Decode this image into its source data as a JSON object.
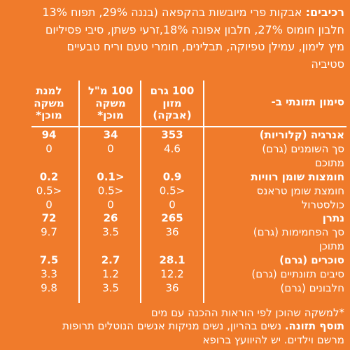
{
  "ingredients": {
    "label": "רכיבים:",
    "lines": [
      "אבקות פרי מיובשות בהקפאה (בננה 29%, תפוח 13%",
      "חלבון חומוס 27%, חלבון אפונה 18%,זרעי פשתן, סיבי פסיליום",
      "מיץ לימון, עמילן טפיוקה, תבלינים, חומרי טעם וריח טבעיים",
      "סטיביה"
    ]
  },
  "table": {
    "header": [
      [
        "סימון תזונתי ב-"
      ],
      [
        "100 גרם",
        "מזון",
        "(אבקה)"
      ],
      [
        "100 מ\"ל",
        "משקה",
        "מוכן*"
      ],
      [
        "למנת",
        "משקה",
        "מוכן*"
      ]
    ],
    "rows": [
      {
        "label": [
          "אנרגיה (קלוריות)"
        ],
        "bold": true,
        "values": [
          "353",
          "34",
          "94"
        ]
      },
      {
        "label": [
          "סך השומנים (גרם)",
          "מתוכם"
        ],
        "bold": false,
        "values": [
          "4.6",
          "0",
          "0"
        ]
      },
      {
        "label": [
          "חומצות שומן רוויות"
        ],
        "bold": true,
        "values": [
          "0.9",
          "<0.1",
          "0.2"
        ]
      },
      {
        "label": [
          "חומצת שומן טראנס"
        ],
        "bold": false,
        "values": [
          "<0.5",
          "<0.5",
          "<0.5"
        ]
      },
      {
        "label": [
          "כולסטרול"
        ],
        "bold": false,
        "values": [
          "0",
          "0",
          "0"
        ]
      },
      {
        "label": [
          "נתרן"
        ],
        "bold": true,
        "values": [
          "265",
          "26",
          "72"
        ]
      },
      {
        "label": [
          "סך הפחמימות (גרם)",
          "מתוכן"
        ],
        "bold": false,
        "values": [
          "36",
          "3.5",
          "9.7"
        ]
      },
      {
        "label": [
          "סוכרים (גרם)"
        ],
        "bold": true,
        "values": [
          "28.1",
          "2.7",
          "7.5"
        ]
      },
      {
        "label": [
          "סיבים תזונתיים (גרם)"
        ],
        "bold": false,
        "values": [
          "12.2",
          "1.2",
          "3.3"
        ]
      },
      {
        "label": [
          "חלבונים (גרם)"
        ],
        "bold": false,
        "values": [
          "36",
          "3.5",
          "9.8"
        ]
      }
    ]
  },
  "footer": {
    "note": "*למשקה שהוכן לפי הוראות ההכנה עם מים",
    "warning_title": "תוסף תזונה.",
    "warning_lines": [
      "נשים בהריון, נשים מניקות אנשים הנוטלים תרופות",
      "מרשם וילדים. יש להיוועץ ברופא"
    ]
  }
}
